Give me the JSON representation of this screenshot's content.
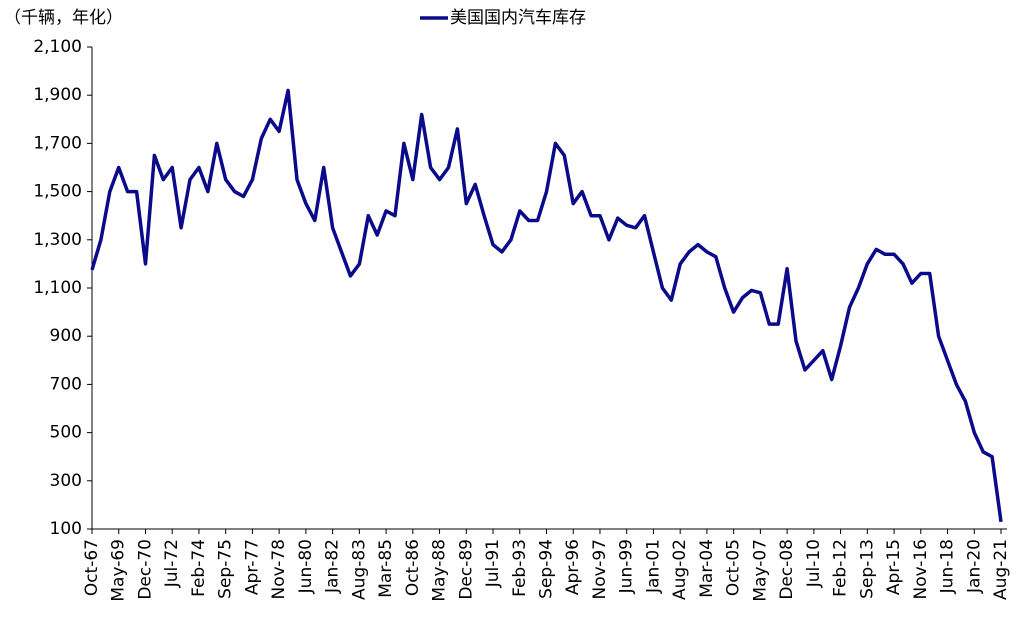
{
  "chart_data": {
    "type": "line",
    "unit_label": "（千辆，年化）",
    "categories": [
      "Oct-67",
      null,
      null,
      "May-69",
      null,
      null,
      "Dec-70",
      null,
      null,
      "Jul-72",
      null,
      null,
      "Feb-74",
      null,
      null,
      "Sep-75",
      null,
      null,
      "Apr-77",
      null,
      null,
      "Nov-78",
      null,
      null,
      "Jun-80",
      null,
      null,
      "Jan-82",
      null,
      null,
      "Aug-83",
      null,
      null,
      "Mar-85",
      null,
      null,
      "Oct-86",
      null,
      null,
      "May-88",
      null,
      null,
      "Dec-89",
      null,
      null,
      "Jul-91",
      null,
      null,
      "Feb-93",
      null,
      null,
      "Sep-94",
      null,
      null,
      "Apr-96",
      null,
      null,
      "Nov-97",
      null,
      null,
      "Jun-99",
      null,
      null,
      "Jan-01",
      null,
      null,
      "Aug-02",
      null,
      null,
      "Mar-04",
      null,
      null,
      "Oct-05",
      null,
      null,
      "May-07",
      null,
      null,
      "Dec-08",
      null,
      null,
      "Jul-10",
      null,
      null,
      "Feb-12",
      null,
      null,
      "Sep-13",
      null,
      null,
      "Apr-15",
      null,
      null,
      "Nov-16",
      null,
      null,
      "Jun-18",
      null,
      null,
      "Jan-20",
      null,
      null,
      "Aug-21"
    ],
    "series": [
      {
        "name": "美国国内汽车库存",
        "color": "#0a0a8a",
        "values": [
          1175,
          1300,
          1500,
          1600,
          1500,
          1500,
          1200,
          1650,
          1550,
          1600,
          1350,
          1550,
          1600,
          1500,
          1700,
          1550,
          1500,
          1480,
          1550,
          1720,
          1800,
          1750,
          1920,
          1550,
          1450,
          1380,
          1600,
          1350,
          1250,
          1150,
          1200,
          1400,
          1320,
          1420,
          1400,
          1700,
          1550,
          1820,
          1600,
          1550,
          1600,
          1760,
          1450,
          1530,
          1400,
          1280,
          1250,
          1300,
          1420,
          1380,
          1380,
          1500,
          1700,
          1650,
          1450,
          1500,
          1400,
          1400,
          1300,
          1390,
          1360,
          1350,
          1400,
          1250,
          1100,
          1050,
          1200,
          1250,
          1280,
          1250,
          1230,
          1100,
          1000,
          1060,
          1090,
          1080,
          950,
          950,
          1180,
          880,
          760,
          800,
          840,
          720,
          860,
          1020,
          1100,
          1200,
          1260,
          1240,
          1240,
          1200,
          1120,
          1160,
          1160,
          900,
          800,
          700,
          630,
          500,
          420,
          400,
          130
        ]
      }
    ],
    "ylim": [
      100,
      2100
    ],
    "yticks": [
      100,
      300,
      500,
      700,
      900,
      {
        "value": 1100,
        "label": "1,100"
      },
      {
        "value": 1300,
        "label": "1,300"
      },
      {
        "value": 1500,
        "label": "1,500"
      },
      {
        "value": 1700,
        "label": "1,700"
      },
      {
        "value": 1900,
        "label": "1,900"
      },
      {
        "value": 2100,
        "label": "2,100"
      }
    ],
    "legend": "top"
  }
}
